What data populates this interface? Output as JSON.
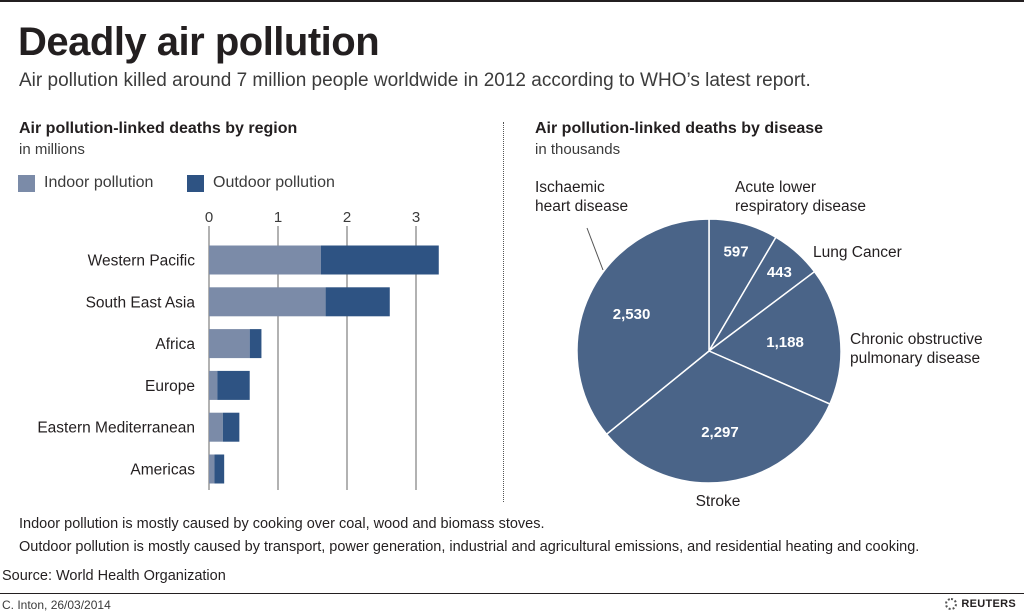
{
  "header": {
    "title": "Deadly air pollution",
    "subtitle": "Air pollution killed around 7 million people worldwide in 2012 according to WHO’s latest report."
  },
  "bar_section": {
    "title": "Air pollution-linked deaths by region",
    "unit": "in millions"
  },
  "pie_section": {
    "title": "Air pollution-linked deaths by disease",
    "unit": "in thousands"
  },
  "notes": {
    "indoor": "Indoor pollution is mostly caused by cooking over coal, wood and biomass stoves.",
    "outdoor": "Outdoor pollution is mostly caused by transport, power generation, industrial and agricultural emissions, and residential heating and cooking."
  },
  "footer": {
    "source": "Source: World Health Organization",
    "credit": "C. Inton, 26/03/2014",
    "brand": "REUTERS"
  },
  "colors": {
    "indoor": "#7b8ba8",
    "outdoor": "#2e5383",
    "pie": "#4a6488",
    "grid": "#666666"
  },
  "chart_data": [
    {
      "type": "bar",
      "orientation": "horizontal",
      "stacked": true,
      "categories": [
        "Western Pacific",
        "South East Asia",
        "Africa",
        "Europe",
        "Eastern Mediterranean",
        "Americas"
      ],
      "series": [
        {
          "name": "Indoor pollution",
          "values": [
            1.62,
            1.69,
            0.59,
            0.12,
            0.2,
            0.08
          ]
        },
        {
          "name": "Outdoor pollution",
          "values": [
            1.71,
            0.93,
            0.17,
            0.47,
            0.24,
            0.14
          ]
        }
      ],
      "xticks": [
        "0",
        "1",
        "2",
        "3"
      ],
      "xlim": [
        0,
        3.4
      ],
      "grid": true,
      "legend": "top-left"
    },
    {
      "type": "pie",
      "labels": [
        "Acute lower respiratory disease",
        "Lung Cancer",
        "Chronic obstructive pulmonary disease",
        "Stroke",
        "Ischaemic heart disease"
      ],
      "values": [
        597,
        443,
        1188,
        2297,
        2530
      ],
      "value_labels": [
        "597",
        "443",
        "1,188",
        "2,297",
        "2,530"
      ]
    }
  ]
}
